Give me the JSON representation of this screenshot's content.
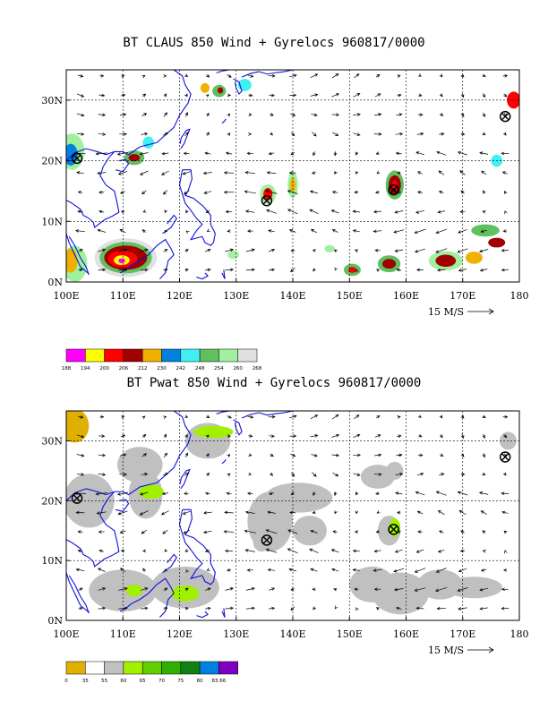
{
  "panels": [
    {
      "title": "BT CLAUS 850 Wind + Gyrelocs 960817/0000",
      "ylabels": [
        "30N",
        "20N",
        "10N",
        "0N"
      ],
      "xlabels": [
        "100E",
        "110E",
        "120E",
        "130E",
        "140E",
        "150E",
        "160E",
        "170E",
        "180"
      ],
      "ref_vector": "15 M/S",
      "gyrelocs": [
        [
          101.9,
          20.4
        ],
        [
          135.4,
          13.4
        ],
        [
          157.8,
          15.2
        ],
        [
          177.5,
          27.3
        ]
      ],
      "colorbar": {
        "colors": [
          "#ff00ff",
          "#ffff00",
          "#ff0000",
          "#a00000",
          "#f0b000",
          "#0080e0",
          "#40f0f0",
          "#60c060",
          "#a0f0a0",
          "#e0e0e0"
        ],
        "labels": [
          "188",
          "194",
          "200",
          "206",
          "212",
          "230",
          "242",
          "248",
          "254",
          "260",
          "268"
        ]
      }
    },
    {
      "title": "BT Pwat 850 Wind + Gyrelocs 960817/0000",
      "ylabels": [
        "30N",
        "20N",
        "10N",
        "0N"
      ],
      "xlabels": [
        "100E",
        "110E",
        "120E",
        "130E",
        "140E",
        "150E",
        "160E",
        "170E",
        "180"
      ],
      "ref_vector": "15 M/S",
      "gyrelocs": [
        [
          101.9,
          20.4
        ],
        [
          135.4,
          13.4
        ],
        [
          157.8,
          15.2
        ],
        [
          177.5,
          27.3
        ]
      ],
      "colorbar": {
        "colors": [
          "#e0b000",
          "#ffffff",
          "#c0c0c0",
          "#a0f000",
          "#60d000",
          "#30b000",
          "#108010",
          "#0080e0",
          "#8000c0"
        ],
        "labels": [
          "0",
          "35",
          "55",
          "60",
          "65",
          "70",
          "75",
          "80",
          "83.66"
        ]
      }
    }
  ]
}
